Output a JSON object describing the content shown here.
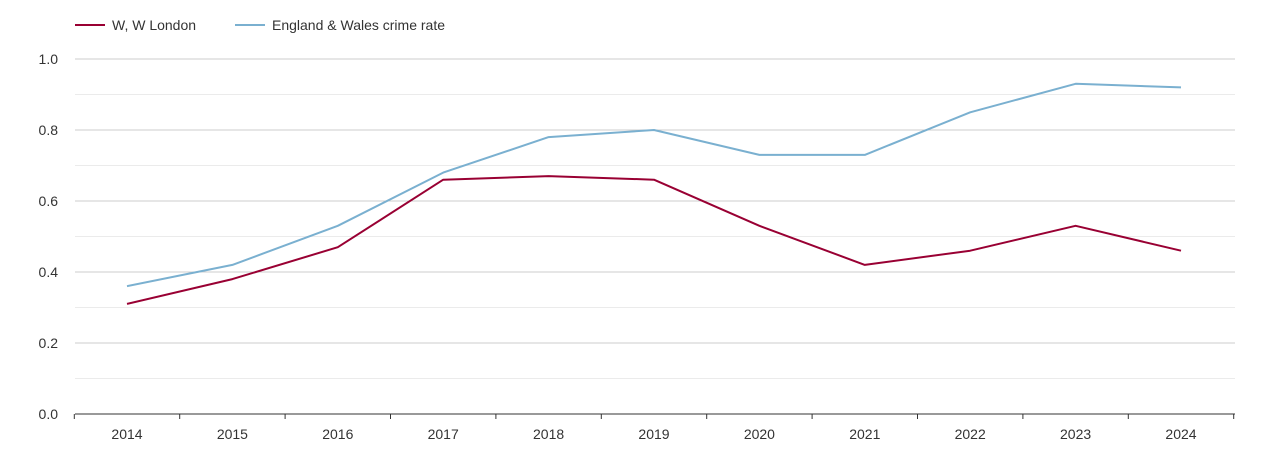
{
  "chart_data": {
    "type": "line",
    "title": "",
    "xlabel": "",
    "ylabel": "",
    "x": [
      "2014",
      "2015",
      "2016",
      "2017",
      "2018",
      "2019",
      "2020",
      "2021",
      "2022",
      "2023",
      "2024"
    ],
    "ylim": [
      0,
      1.0
    ],
    "yticks": [
      "0.0",
      "0.2",
      "0.4",
      "0.6",
      "0.8",
      "1.0"
    ],
    "grid": true,
    "legend_position": "top-left",
    "series": [
      {
        "name": "W, W London",
        "color": "#990033",
        "values": [
          0.31,
          0.38,
          0.47,
          0.66,
          0.67,
          0.66,
          0.53,
          0.42,
          0.46,
          0.53,
          0.46
        ]
      },
      {
        "name": "England & Wales crime rate",
        "color": "#7ab0d0",
        "values": [
          0.36,
          0.42,
          0.53,
          0.68,
          0.78,
          0.8,
          0.73,
          0.73,
          0.85,
          0.93,
          0.92
        ]
      }
    ]
  }
}
